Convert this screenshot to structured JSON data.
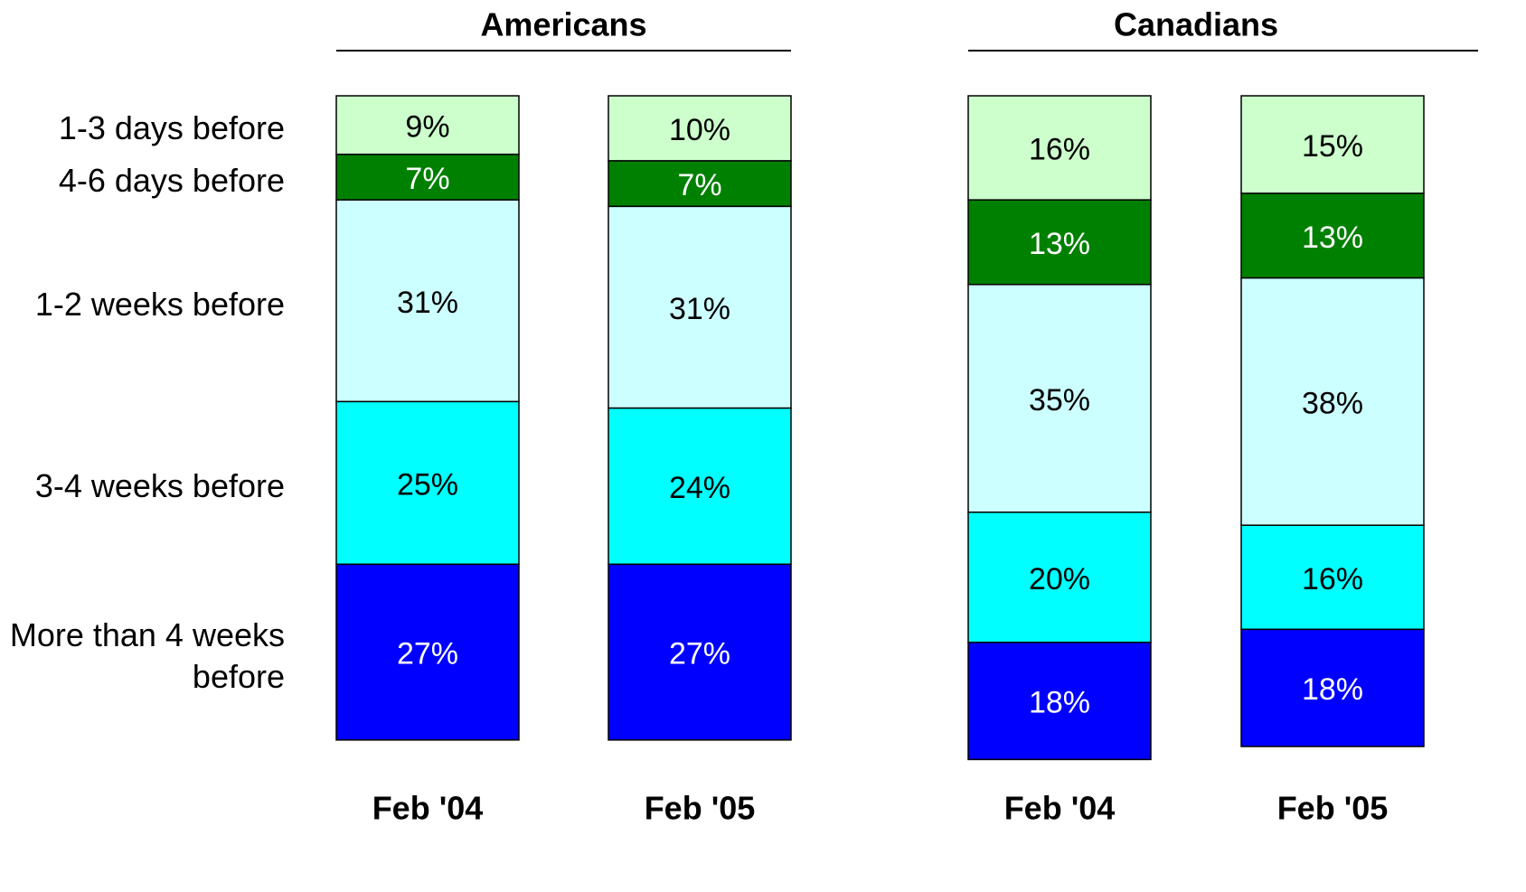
{
  "chart_data": {
    "type": "stacked_bar",
    "groups": [
      "Americans",
      "Canadians"
    ],
    "categories": [
      "Feb '04",
      "Feb '05",
      "Feb '04",
      "Feb '05"
    ],
    "ylim": [
      0,
      100
    ],
    "series": [
      {
        "name": "1-3 days before",
        "color": "#ccffcc",
        "values": [
          9,
          10,
          16,
          15
        ],
        "value_labels": [
          "9%",
          "10%",
          "16%",
          "15%"
        ]
      },
      {
        "name": "4-6 days before",
        "color": "#008000",
        "values": [
          7,
          7,
          13,
          13
        ],
        "value_labels": [
          "7%",
          "7%",
          "13%",
          "13%"
        ]
      },
      {
        "name": "1-2 weeks before",
        "color": "#ccffff",
        "values": [
          31,
          31,
          35,
          38
        ],
        "value_labels": [
          "31%",
          "31%",
          "35%",
          "38%"
        ]
      },
      {
        "name": "3-4 weeks before",
        "color": "#00ffff",
        "values": [
          25,
          24,
          20,
          16
        ],
        "value_labels": [
          "25%",
          "24%",
          "20%",
          "16%"
        ]
      },
      {
        "name": "More than 4 weeks before",
        "color": "#0000ff",
        "values": [
          27,
          27,
          18,
          18
        ],
        "value_labels": [
          "27%",
          "27%",
          "18%",
          "18%"
        ]
      }
    ]
  }
}
